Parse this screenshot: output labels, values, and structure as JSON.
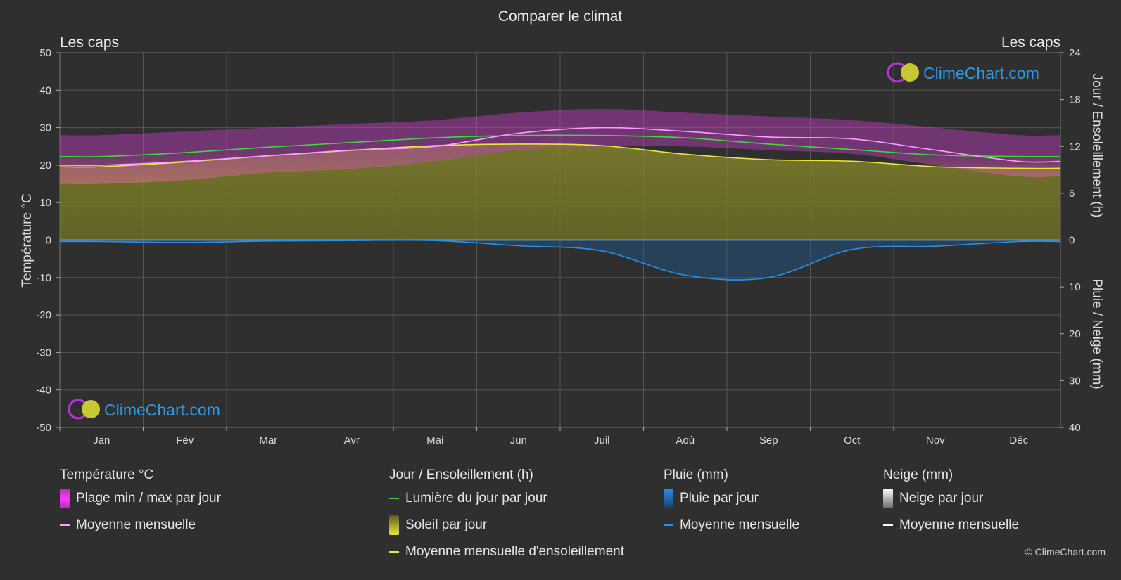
{
  "title": "Comparer le climat",
  "location_left": "Les caps",
  "location_right": "Les caps",
  "watermark": "ClimeChart.com",
  "copyright": "© ClimeChart.com",
  "axes": {
    "left_label": "Température °C",
    "right_top_label": "Jour / Ensoleillement (h)",
    "right_bottom_label": "Pluie / Neige (mm)",
    "left_ticks": [
      "50",
      "40",
      "30",
      "20",
      "10",
      "0",
      "-10",
      "-20",
      "-30",
      "-40",
      "-50"
    ],
    "right_top_ticks": [
      "24",
      "18",
      "12",
      "6",
      "0"
    ],
    "right_bottom_ticks": [
      "10",
      "20",
      "30",
      "40"
    ]
  },
  "colors": {
    "background": "#2f2f2f",
    "temp_range": "#d63ad6",
    "temp_mean": "#ff9bff",
    "daylight": "#3fd63f",
    "sunshine_fill": "#a3a32a",
    "sunshine_mean": "#e8e83a",
    "rain": "#1e78c8",
    "rain_mean": "#2b8fe6",
    "snow_mean": "#ffffff"
  },
  "chart_data": {
    "type": "line",
    "months": [
      "Jan",
      "Fév",
      "Mar",
      "Avr",
      "Mai",
      "Jun",
      "Juil",
      "Aoû",
      "Sep",
      "Oct",
      "Nov",
      "Déc"
    ],
    "temp_ylim": [
      -50,
      50
    ],
    "hours_ylim": [
      0,
      24
    ],
    "precip_ylim": [
      0,
      40
    ],
    "series": [
      {
        "name": "Moyenne mensuelle",
        "group": "temperature",
        "values": [
          20,
          21,
          22.5,
          24,
          25,
          28.5,
          30,
          29,
          27.5,
          27,
          24,
          21
        ]
      },
      {
        "name": "Plage min / max par jour",
        "group": "temperature",
        "min": [
          15,
          16,
          18,
          19,
          21,
          24,
          25,
          25,
          24,
          23,
          20,
          17
        ],
        "max": [
          28,
          29,
          30,
          31,
          32,
          34,
          35,
          34,
          33,
          32,
          30,
          28
        ]
      },
      {
        "name": "Lumière du jour par jour",
        "group": "hours",
        "values": [
          10.7,
          11.2,
          11.9,
          12.5,
          13.1,
          13.4,
          13.4,
          13.1,
          12.3,
          11.6,
          10.9,
          10.7
        ]
      },
      {
        "name": "Moyenne mensuelle d'ensoleillement",
        "group": "hours",
        "values": [
          9.4,
          10.0,
          10.8,
          11.5,
          12.1,
          12.3,
          12.1,
          11.0,
          10.3,
          10.1,
          9.4,
          9.2
        ]
      },
      {
        "name": "Moyenne mensuelle",
        "group": "rain",
        "values": [
          0.3,
          0.5,
          0.2,
          0.1,
          0.1,
          1.2,
          2.3,
          7.5,
          8.0,
          2.0,
          1.3,
          0.3
        ]
      }
    ]
  },
  "legend": {
    "temperature": {
      "title": "Température °C",
      "items": [
        "Plage min / max par jour",
        "Moyenne mensuelle"
      ]
    },
    "sun": {
      "title": "Jour / Ensoleillement (h)",
      "items": [
        "Lumière du jour par jour",
        "Soleil par jour",
        "Moyenne mensuelle d'ensoleillement"
      ]
    },
    "rain": {
      "title": "Pluie (mm)",
      "items": [
        "Pluie par jour",
        "Moyenne mensuelle"
      ]
    },
    "snow": {
      "title": "Neige (mm)",
      "items": [
        "Neige par jour",
        "Moyenne mensuelle"
      ]
    }
  }
}
